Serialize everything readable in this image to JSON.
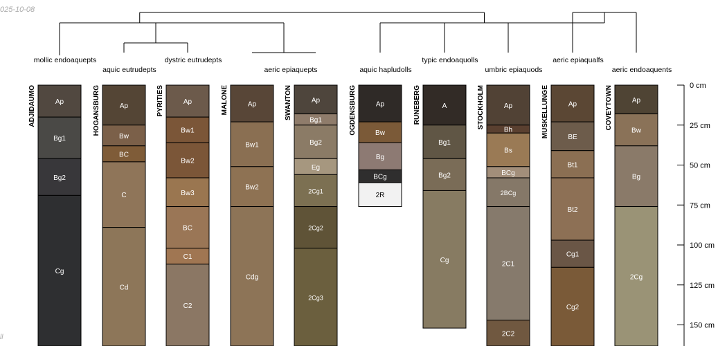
{
  "date_text": "025-10-08",
  "footer_text": "ll",
  "chart_data": {
    "type": "soil-profile-sketch",
    "title": "",
    "y_unit": "cm",
    "ylim": [
      0,
      160
    ],
    "ylabel": "",
    "y_ticks": [
      {
        "value": 0,
        "label": "0 cm"
      },
      {
        "value": 25,
        "label": "25 cm"
      },
      {
        "value": 50,
        "label": "50 cm"
      },
      {
        "value": 75,
        "label": "75 cm"
      },
      {
        "value": 100,
        "label": "100 cm"
      },
      {
        "value": 125,
        "label": "125 cm"
      },
      {
        "value": 150,
        "label": "150 cm"
      }
    ],
    "profiles": [
      {
        "name": "ADJIDAUMO",
        "taxon": "mollic endoaquepts",
        "horizons": [
          {
            "name": "Ap",
            "top": 0,
            "bottom": 20,
            "color": "#514840"
          },
          {
            "name": "Bg1",
            "top": 20,
            "bottom": 46,
            "color": "#4a4946"
          },
          {
            "name": "Bg2",
            "top": 46,
            "bottom": 69,
            "color": "#38373a"
          },
          {
            "name": "Cg",
            "top": 69,
            "bottom": 165,
            "color": "#2e2f31"
          }
        ]
      },
      {
        "name": "HOGANSBURG",
        "taxon": "aquic eutrudepts",
        "horizons": [
          {
            "name": "Ap",
            "top": 0,
            "bottom": 25,
            "color": "#544535"
          },
          {
            "name": "Bw",
            "top": 25,
            "bottom": 38,
            "color": "#7b6049"
          },
          {
            "name": "BC",
            "top": 38,
            "bottom": 48,
            "color": "#7f5c38"
          },
          {
            "name": "C",
            "top": 48,
            "bottom": 89,
            "color": "#8f7559"
          },
          {
            "name": "Cd",
            "top": 89,
            "bottom": 165,
            "color": "#8d7659"
          }
        ]
      },
      {
        "name": "PYRITIES",
        "taxon": "dystric eutrudepts",
        "horizons": [
          {
            "name": "Ap",
            "top": 0,
            "bottom": 20,
            "color": "#6c5a4b"
          },
          {
            "name": "Bw1",
            "top": 20,
            "bottom": 36,
            "color": "#7b5638"
          },
          {
            "name": "Bw2",
            "top": 36,
            "bottom": 58,
            "color": "#7b5638"
          },
          {
            "name": "Bw3",
            "top": 58,
            "bottom": 76,
            "color": "#9a7650"
          },
          {
            "name": "BC",
            "top": 76,
            "bottom": 102,
            "color": "#9a7656"
          },
          {
            "name": "C1",
            "top": 102,
            "bottom": 112,
            "color": "#a07652"
          },
          {
            "name": "C2",
            "top": 112,
            "bottom": 165,
            "color": "#8b7764"
          }
        ]
      },
      {
        "name": "MALONE",
        "taxon": "aeric epiaquepts",
        "horizons": [
          {
            "name": "Ap",
            "top": 0,
            "bottom": 23,
            "color": "#584637"
          },
          {
            "name": "Bw1",
            "top": 23,
            "bottom": 51,
            "color": "#8a6f52"
          },
          {
            "name": "Bw2",
            "top": 51,
            "bottom": 76,
            "color": "#8e7253"
          },
          {
            "name": "Cdg",
            "top": 76,
            "bottom": 165,
            "color": "#8d7457"
          }
        ]
      },
      {
        "name": "SWANTON",
        "taxon": "",
        "horizons": [
          {
            "name": "Ap",
            "top": 0,
            "bottom": 18,
            "color": "#4e453c"
          },
          {
            "name": "Bg1",
            "top": 18,
            "bottom": 25,
            "color": "#8f7c6b"
          },
          {
            "name": "Bg2",
            "top": 25,
            "bottom": 46,
            "color": "#8b7b66"
          },
          {
            "name": "Eg",
            "top": 46,
            "bottom": 56,
            "color": "#a6977f"
          },
          {
            "name": "2Cg1",
            "top": 56,
            "bottom": 76,
            "color": "#7c7052"
          },
          {
            "name": "2Cg2",
            "top": 76,
            "bottom": 102,
            "color": "#5f5337"
          },
          {
            "name": "2Cg3",
            "top": 102,
            "bottom": 165,
            "color": "#6b5f3e"
          }
        ]
      },
      {
        "name": "OGDENSBURG",
        "taxon": "aquic hapludolls",
        "horizons": [
          {
            "name": "Ap",
            "top": 0,
            "bottom": 23,
            "color": "#2f2a27"
          },
          {
            "name": "Bw",
            "top": 23,
            "bottom": 36,
            "color": "#7b5a38"
          },
          {
            "name": "Bg",
            "top": 36,
            "bottom": 53,
            "color": "#8d7a73"
          },
          {
            "name": "BCg",
            "top": 53,
            "bottom": 61,
            "color": "#2f2e2e"
          },
          {
            "name": "2R",
            "top": 61,
            "bottom": 76,
            "color": "#f2f2f2"
          }
        ]
      },
      {
        "name": "RUNEBERG",
        "taxon": "typic endoaquolls",
        "horizons": [
          {
            "name": "A",
            "top": 0,
            "bottom": 25,
            "color": "#322b26"
          },
          {
            "name": "Bg1",
            "top": 25,
            "bottom": 46,
            "color": "#605645"
          },
          {
            "name": "Bg2",
            "top": 46,
            "bottom": 66,
            "color": "#7a6c57"
          },
          {
            "name": "Cg",
            "top": 66,
            "bottom": 152,
            "color": "#877b62"
          }
        ]
      },
      {
        "name": "STOCKHOLM",
        "taxon": "umbric epiaquods",
        "horizons": [
          {
            "name": "Ap",
            "top": 0,
            "bottom": 25,
            "color": "#514235"
          },
          {
            "name": "Bh",
            "top": 25,
            "bottom": 30,
            "color": "#5a4030"
          },
          {
            "name": "Bs",
            "top": 30,
            "bottom": 51,
            "color": "#9a7a55"
          },
          {
            "name": "BCg",
            "top": 51,
            "bottom": 58,
            "color": "#a28e7a"
          },
          {
            "name": "2BCg",
            "top": 58,
            "bottom": 76,
            "color": "#857868"
          },
          {
            "name": "2C1",
            "top": 76,
            "bottom": 147,
            "color": "#867a6c"
          },
          {
            "name": "2C2",
            "top": 147,
            "bottom": 165,
            "color": "#705840"
          }
        ]
      },
      {
        "name": "MUSKELLUNGE",
        "taxon": "aeric epiaqualfs",
        "horizons": [
          {
            "name": "Ap",
            "top": 0,
            "bottom": 23,
            "color": "#5b4734"
          },
          {
            "name": "BE",
            "top": 23,
            "bottom": 41,
            "color": "#6d5c4b"
          },
          {
            "name": "Bt1",
            "top": 41,
            "bottom": 58,
            "color": "#8b6f53"
          },
          {
            "name": "Bt2",
            "top": 58,
            "bottom": 97,
            "color": "#8d7055"
          },
          {
            "name": "Cg1",
            "top": 97,
            "bottom": 114,
            "color": "#6a5646"
          },
          {
            "name": "Cg2",
            "top": 114,
            "bottom": 165,
            "color": "#7a5a38"
          }
        ]
      },
      {
        "name": "COVEYTOWN",
        "taxon": "aeric endoaquents",
        "horizons": [
          {
            "name": "Ap",
            "top": 0,
            "bottom": 18,
            "color": "#4f4434"
          },
          {
            "name": "Bw",
            "top": 18,
            "bottom": 38,
            "color": "#8a7258"
          },
          {
            "name": "Bg",
            "top": 38,
            "bottom": 76,
            "color": "#8a7a69"
          },
          {
            "name": "2Cg",
            "top": 76,
            "bottom": 165,
            "color": "#9a9376"
          }
        ]
      }
    ],
    "dendrogram": {
      "root_children": [
        "A",
        "B"
      ],
      "groups": {
        "A": [
          "A1",
          "A2"
        ],
        "A1": [
          0
        ],
        "A2": [
          "A3",
          "A4"
        ],
        "A3": [
          1,
          2
        ],
        "A4": [
          3,
          4
        ],
        "B": [
          "B1",
          "B2"
        ],
        "B1": [
          5,
          6
        ],
        "B2": [
          7,
          "B3"
        ],
        "B3": [
          8,
          9
        ]
      }
    }
  }
}
